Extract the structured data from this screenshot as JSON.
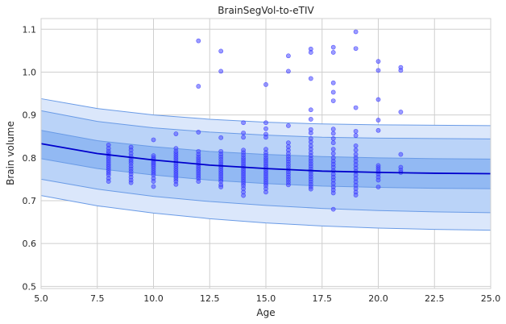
{
  "chart_data": {
    "type": "scatter",
    "title": "BrainSegVol-to-eTIV",
    "xlabel": "Age",
    "ylabel": "Brain volume",
    "xlim": [
      5.0,
      25.0
    ],
    "ylim": [
      0.495,
      1.125
    ],
    "xticks": [
      5.0,
      7.5,
      10.0,
      12.5,
      15.0,
      17.5,
      20.0,
      22.5,
      25.0
    ],
    "xtick_labels": [
      "5.0",
      "7.5",
      "10.0",
      "12.5",
      "15.0",
      "17.5",
      "20.0",
      "22.5",
      "25.0"
    ],
    "yticks": [
      0.5,
      0.6,
      0.7,
      0.8,
      0.9,
      1.0,
      1.1
    ],
    "ytick_labels": [
      "0.5",
      "0.6",
      "0.7",
      "0.8",
      "0.9",
      "1.0",
      "1.1"
    ],
    "grid": true,
    "colors": {
      "points": "#4b4bff",
      "median": "#0000cc",
      "band_outer": "#dbe7fb",
      "band_mid": "#bad3f8",
      "band_inner": "#92b9f3",
      "band_edge": "#6a9be6",
      "grid": "#cfcfcf"
    },
    "median_curve": {
      "x": [
        5,
        7.5,
        10,
        12.5,
        15,
        17.5,
        20,
        22.5,
        25
      ],
      "y": [
        0.833,
        0.81,
        0.795,
        0.783,
        0.775,
        0.769,
        0.766,
        0.764,
        0.763
      ]
    },
    "bands": [
      {
        "level": "outer",
        "x": [
          5,
          7.5,
          10,
          12.5,
          15,
          17.5,
          20,
          22.5,
          25
        ],
        "lower": [
          0.712,
          0.688,
          0.671,
          0.658,
          0.648,
          0.641,
          0.636,
          0.633,
          0.631
        ],
        "upper": [
          0.938,
          0.915,
          0.9,
          0.89,
          0.883,
          0.879,
          0.877,
          0.876,
          0.875
        ]
      },
      {
        "level": "mid",
        "x": [
          5,
          7.5,
          10,
          12.5,
          15,
          17.5,
          20,
          22.5,
          25
        ],
        "lower": [
          0.75,
          0.727,
          0.71,
          0.698,
          0.689,
          0.682,
          0.677,
          0.674,
          0.672
        ],
        "upper": [
          0.91,
          0.885,
          0.87,
          0.86,
          0.853,
          0.848,
          0.846,
          0.845,
          0.844
        ]
      },
      {
        "level": "inner",
        "x": [
          5,
          7.5,
          10,
          12.5,
          15,
          17.5,
          20,
          22.5,
          25
        ],
        "lower": [
          0.798,
          0.775,
          0.76,
          0.748,
          0.74,
          0.734,
          0.731,
          0.729,
          0.728
        ],
        "upper": [
          0.864,
          0.84,
          0.826,
          0.815,
          0.808,
          0.803,
          0.8,
          0.798,
          0.797
        ]
      }
    ],
    "points": [
      [
        8,
        0.83
      ],
      [
        8,
        0.822
      ],
      [
        8,
        0.815
      ],
      [
        8,
        0.81
      ],
      [
        8,
        0.805
      ],
      [
        8,
        0.8
      ],
      [
        8,
        0.795
      ],
      [
        8,
        0.79
      ],
      [
        8,
        0.785
      ],
      [
        8,
        0.78
      ],
      [
        8,
        0.775
      ],
      [
        8,
        0.77
      ],
      [
        8,
        0.765
      ],
      [
        8,
        0.76
      ],
      [
        8,
        0.752
      ],
      [
        8,
        0.745
      ],
      [
        9,
        0.825
      ],
      [
        9,
        0.818
      ],
      [
        9,
        0.81
      ],
      [
        9,
        0.803
      ],
      [
        9,
        0.797
      ],
      [
        9,
        0.792
      ],
      [
        9,
        0.787
      ],
      [
        9,
        0.78
      ],
      [
        9,
        0.774
      ],
      [
        9,
        0.768
      ],
      [
        9,
        0.762
      ],
      [
        9,
        0.755
      ],
      [
        9,
        0.748
      ],
      [
        9,
        0.742
      ],
      [
        10,
        0.842
      ],
      [
        10,
        0.805
      ],
      [
        10,
        0.8
      ],
      [
        10,
        0.796
      ],
      [
        10,
        0.792
      ],
      [
        10,
        0.788
      ],
      [
        10,
        0.784
      ],
      [
        10,
        0.78
      ],
      [
        10,
        0.775
      ],
      [
        10,
        0.77
      ],
      [
        10,
        0.765
      ],
      [
        10,
        0.76
      ],
      [
        10,
        0.752
      ],
      [
        10,
        0.745
      ],
      [
        10,
        0.733
      ],
      [
        11,
        0.856
      ],
      [
        11,
        0.822
      ],
      [
        11,
        0.815
      ],
      [
        11,
        0.81
      ],
      [
        11,
        0.805
      ],
      [
        11,
        0.8
      ],
      [
        11,
        0.795
      ],
      [
        11,
        0.79
      ],
      [
        11,
        0.785
      ],
      [
        11,
        0.78
      ],
      [
        11,
        0.775
      ],
      [
        11,
        0.77
      ],
      [
        11,
        0.765
      ],
      [
        11,
        0.76
      ],
      [
        11,
        0.755
      ],
      [
        11,
        0.75
      ],
      [
        11,
        0.745
      ],
      [
        11,
        0.738
      ],
      [
        12,
        1.073
      ],
      [
        12,
        0.967
      ],
      [
        12,
        0.86
      ],
      [
        12,
        0.815
      ],
      [
        12,
        0.808
      ],
      [
        12,
        0.802
      ],
      [
        12,
        0.797
      ],
      [
        12,
        0.792
      ],
      [
        12,
        0.787
      ],
      [
        12,
        0.782
      ],
      [
        12,
        0.777
      ],
      [
        12,
        0.772
      ],
      [
        12,
        0.767
      ],
      [
        12,
        0.762
      ],
      [
        12,
        0.757
      ],
      [
        12,
        0.752
      ],
      [
        12,
        0.745
      ],
      [
        13,
        1.049
      ],
      [
        13,
        1.002
      ],
      [
        13,
        0.847
      ],
      [
        13,
        0.815
      ],
      [
        13,
        0.808
      ],
      [
        13,
        0.802
      ],
      [
        13,
        0.796
      ],
      [
        13,
        0.79
      ],
      [
        13,
        0.785
      ],
      [
        13,
        0.78
      ],
      [
        13,
        0.775
      ],
      [
        13,
        0.77
      ],
      [
        13,
        0.765
      ],
      [
        13,
        0.76
      ],
      [
        13,
        0.755
      ],
      [
        13,
        0.75
      ],
      [
        13,
        0.745
      ],
      [
        13,
        0.737
      ],
      [
        13,
        0.732
      ],
      [
        14,
        0.882
      ],
      [
        14,
        0.858
      ],
      [
        14,
        0.848
      ],
      [
        14,
        0.818
      ],
      [
        14,
        0.812
      ],
      [
        14,
        0.806
      ],
      [
        14,
        0.8
      ],
      [
        14,
        0.795
      ],
      [
        14,
        0.79
      ],
      [
        14,
        0.785
      ],
      [
        14,
        0.78
      ],
      [
        14,
        0.775
      ],
      [
        14,
        0.77
      ],
      [
        14,
        0.765
      ],
      [
        14,
        0.76
      ],
      [
        14,
        0.755
      ],
      [
        14,
        0.75
      ],
      [
        14,
        0.745
      ],
      [
        14,
        0.74
      ],
      [
        14,
        0.735
      ],
      [
        14,
        0.728
      ],
      [
        14,
        0.72
      ],
      [
        14,
        0.712
      ],
      [
        15,
        0.971
      ],
      [
        15,
        0.882
      ],
      [
        15,
        0.868
      ],
      [
        15,
        0.855
      ],
      [
        15,
        0.848
      ],
      [
        15,
        0.82
      ],
      [
        15,
        0.812
      ],
      [
        15,
        0.806
      ],
      [
        15,
        0.8
      ],
      [
        15,
        0.795
      ],
      [
        15,
        0.79
      ],
      [
        15,
        0.785
      ],
      [
        15,
        0.78
      ],
      [
        15,
        0.775
      ],
      [
        15,
        0.77
      ],
      [
        15,
        0.765
      ],
      [
        15,
        0.76
      ],
      [
        15,
        0.755
      ],
      [
        15,
        0.75
      ],
      [
        15,
        0.745
      ],
      [
        15,
        0.74
      ],
      [
        15,
        0.735
      ],
      [
        15,
        0.728
      ],
      [
        15,
        0.72
      ],
      [
        16,
        1.038
      ],
      [
        16,
        1.002
      ],
      [
        16,
        0.875
      ],
      [
        16,
        0.835
      ],
      [
        16,
        0.826
      ],
      [
        16,
        0.818
      ],
      [
        16,
        0.81
      ],
      [
        16,
        0.803
      ],
      [
        16,
        0.797
      ],
      [
        16,
        0.791
      ],
      [
        16,
        0.785
      ],
      [
        16,
        0.779
      ],
      [
        16,
        0.773
      ],
      [
        16,
        0.767
      ],
      [
        16,
        0.761
      ],
      [
        16,
        0.755
      ],
      [
        16,
        0.749
      ],
      [
        16,
        0.743
      ],
      [
        16,
        0.737
      ],
      [
        17,
        1.054
      ],
      [
        17,
        1.046
      ],
      [
        17,
        0.985
      ],
      [
        17,
        0.912
      ],
      [
        17,
        0.89
      ],
      [
        17,
        0.866
      ],
      [
        17,
        0.858
      ],
      [
        17,
        0.845
      ],
      [
        17,
        0.837
      ],
      [
        17,
        0.828
      ],
      [
        17,
        0.82
      ],
      [
        17,
        0.812
      ],
      [
        17,
        0.805
      ],
      [
        17,
        0.798
      ],
      [
        17,
        0.792
      ],
      [
        17,
        0.786
      ],
      [
        17,
        0.78
      ],
      [
        17,
        0.774
      ],
      [
        17,
        0.768
      ],
      [
        17,
        0.762
      ],
      [
        17,
        0.756
      ],
      [
        17,
        0.75
      ],
      [
        17,
        0.744
      ],
      [
        17,
        0.738
      ],
      [
        17,
        0.732
      ],
      [
        17,
        0.727
      ],
      [
        18,
        1.058
      ],
      [
        18,
        1.046
      ],
      [
        18,
        0.975
      ],
      [
        18,
        0.953
      ],
      [
        18,
        0.933
      ],
      [
        18,
        0.867
      ],
      [
        18,
        0.857
      ],
      [
        18,
        0.845
      ],
      [
        18,
        0.835
      ],
      [
        18,
        0.82
      ],
      [
        18,
        0.81
      ],
      [
        18,
        0.8
      ],
      [
        18,
        0.792
      ],
      [
        18,
        0.785
      ],
      [
        18,
        0.778
      ],
      [
        18,
        0.77
      ],
      [
        18,
        0.762
      ],
      [
        18,
        0.755
      ],
      [
        18,
        0.748
      ],
      [
        18,
        0.74
      ],
      [
        18,
        0.732
      ],
      [
        18,
        0.725
      ],
      [
        18,
        0.718
      ],
      [
        18,
        0.68
      ],
      [
        19,
        1.094
      ],
      [
        19,
        1.055
      ],
      [
        19,
        0.917
      ],
      [
        19,
        0.862
      ],
      [
        19,
        0.852
      ],
      [
        19,
        0.828
      ],
      [
        19,
        0.818
      ],
      [
        19,
        0.808
      ],
      [
        19,
        0.8
      ],
      [
        19,
        0.792
      ],
      [
        19,
        0.784
      ],
      [
        19,
        0.776
      ],
      [
        19,
        0.768
      ],
      [
        19,
        0.76
      ],
      [
        19,
        0.752
      ],
      [
        19,
        0.744
      ],
      [
        19,
        0.736
      ],
      [
        19,
        0.728
      ],
      [
        19,
        0.72
      ],
      [
        19,
        0.713
      ],
      [
        20,
        1.025
      ],
      [
        20,
        1.004
      ],
      [
        20,
        0.936
      ],
      [
        20,
        0.888
      ],
      [
        20,
        0.864
      ],
      [
        20,
        0.782
      ],
      [
        20,
        0.777
      ],
      [
        20,
        0.772
      ],
      [
        20,
        0.767
      ],
      [
        20,
        0.762
      ],
      [
        20,
        0.755
      ],
      [
        20,
        0.748
      ],
      [
        20,
        0.732
      ],
      [
        21,
        1.011
      ],
      [
        21,
        1.004
      ],
      [
        21,
        0.907
      ],
      [
        21,
        0.808
      ],
      [
        21,
        0.778
      ],
      [
        21,
        0.771
      ],
      [
        21,
        0.766
      ]
    ]
  }
}
